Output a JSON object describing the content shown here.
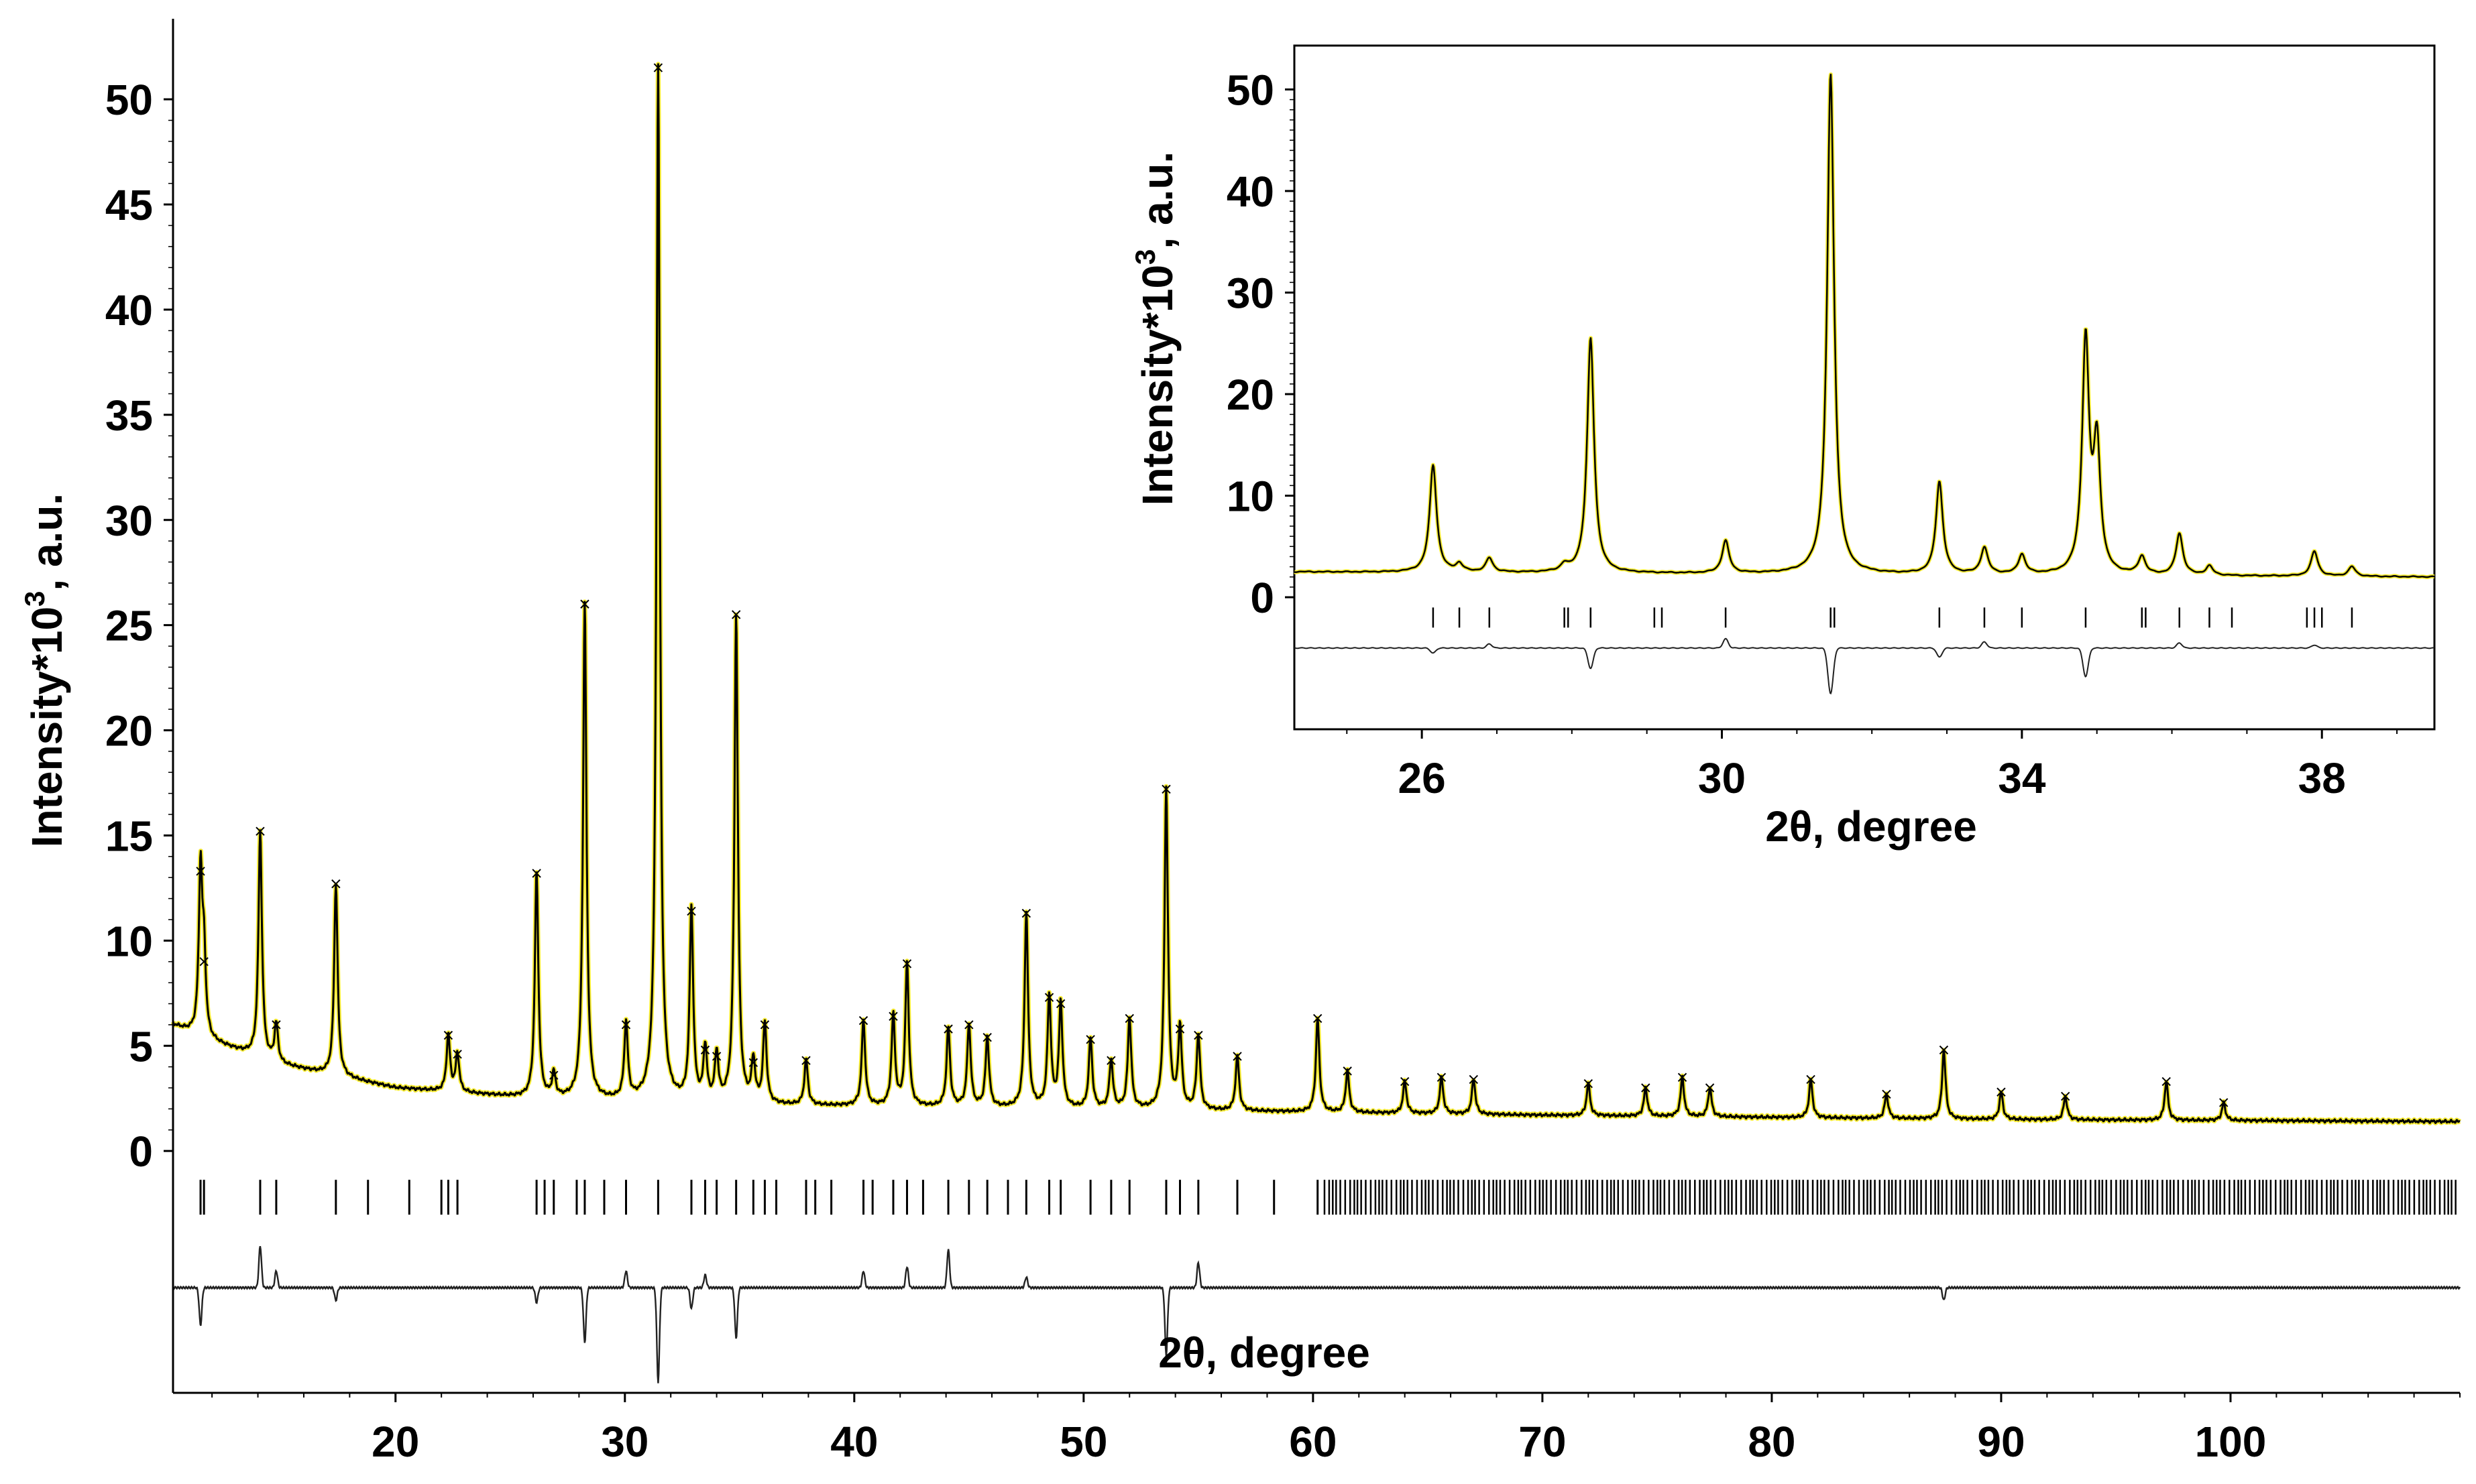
{
  "chart_data": [
    {
      "type": "line",
      "title": "",
      "xlabel": "2θ, degree",
      "ylabel": "Intensity*10",
      "ylabel_superscript": "3",
      "ylabel_suffix": ", a.u.",
      "xlim": [
        10.3,
        110
      ],
      "ylim": [
        -11.5,
        53
      ],
      "xticks": [
        20,
        30,
        40,
        50,
        60,
        70,
        80,
        90,
        100
      ],
      "yticks": [
        0,
        5,
        10,
        15,
        20,
        25,
        30,
        35,
        40,
        45,
        50
      ],
      "series": [
        {
          "role": "observed and calculated profile",
          "style": "observed points (x) with calculated line",
          "highlight_color": "#f5ea33",
          "line_color": "#000000",
          "background": [
            [
              10.3,
              6.0
            ],
            [
              12,
              5.2
            ],
            [
              15,
              4.1
            ],
            [
              20,
              3.0
            ],
            [
              26,
              2.5
            ],
            [
              35,
              2.2
            ],
            [
              50,
              2.0
            ],
            [
              70,
              1.7
            ],
            [
              90,
              1.5
            ],
            [
              110,
              1.4
            ]
          ],
          "peaks": [
            {
              "x": 11.5,
              "y": 13.3
            },
            {
              "x": 11.65,
              "y": 9.0
            },
            {
              "x": 14.1,
              "y": 15.2
            },
            {
              "x": 14.8,
              "y": 6.0
            },
            {
              "x": 17.4,
              "y": 12.7
            },
            {
              "x": 22.3,
              "y": 5.5
            },
            {
              "x": 22.7,
              "y": 4.6
            },
            {
              "x": 26.15,
              "y": 13.2
            },
            {
              "x": 26.9,
              "y": 3.6
            },
            {
              "x": 28.25,
              "y": 26.0
            },
            {
              "x": 30.05,
              "y": 6.0
            },
            {
              "x": 31.45,
              "y": 51.5
            },
            {
              "x": 32.9,
              "y": 11.4
            },
            {
              "x": 33.5,
              "y": 4.8
            },
            {
              "x": 34.0,
              "y": 4.5
            },
            {
              "x": 34.85,
              "y": 25.5
            },
            {
              "x": 35.6,
              "y": 4.2
            },
            {
              "x": 36.1,
              "y": 6.0
            },
            {
              "x": 37.9,
              "y": 4.3
            },
            {
              "x": 40.4,
              "y": 6.2
            },
            {
              "x": 41.7,
              "y": 6.4
            },
            {
              "x": 42.3,
              "y": 8.9
            },
            {
              "x": 44.1,
              "y": 5.8
            },
            {
              "x": 45.0,
              "y": 6.0
            },
            {
              "x": 45.8,
              "y": 5.4
            },
            {
              "x": 47.5,
              "y": 11.3
            },
            {
              "x": 48.5,
              "y": 7.3
            },
            {
              "x": 49.0,
              "y": 7.0
            },
            {
              "x": 50.3,
              "y": 5.3
            },
            {
              "x": 51.2,
              "y": 4.3
            },
            {
              "x": 52.0,
              "y": 6.3
            },
            {
              "x": 53.6,
              "y": 17.2
            },
            {
              "x": 54.2,
              "y": 5.8
            },
            {
              "x": 55.0,
              "y": 5.5
            },
            {
              "x": 56.7,
              "y": 4.5
            },
            {
              "x": 60.2,
              "y": 6.3
            },
            {
              "x": 61.5,
              "y": 3.8
            },
            {
              "x": 64.0,
              "y": 3.3
            },
            {
              "x": 65.6,
              "y": 3.5
            },
            {
              "x": 67.0,
              "y": 3.4
            },
            {
              "x": 72.0,
              "y": 3.2
            },
            {
              "x": 74.5,
              "y": 3.0
            },
            {
              "x": 76.1,
              "y": 3.5
            },
            {
              "x": 77.3,
              "y": 3.0
            },
            {
              "x": 81.7,
              "y": 3.4
            },
            {
              "x": 85.0,
              "y": 2.7
            },
            {
              "x": 87.5,
              "y": 4.8
            },
            {
              "x": 90.0,
              "y": 2.8
            },
            {
              "x": 92.8,
              "y": 2.6
            },
            {
              "x": 97.2,
              "y": 3.3
            },
            {
              "x": 99.7,
              "y": 2.3
            }
          ]
        },
        {
          "role": "Bragg reflection positions",
          "style": "vertical tick marks",
          "y": -2.2,
          "x": [
            11.5,
            11.65,
            14.1,
            14.8,
            17.4,
            18.8,
            20.6,
            22.0,
            22.3,
            22.7,
            26.15,
            26.5,
            26.9,
            27.9,
            28.25,
            29.1,
            30.05,
            31.45,
            32.9,
            33.5,
            34.0,
            34.85,
            35.6,
            36.1,
            36.6,
            37.9,
            38.3,
            39.0,
            40.4,
            40.8,
            41.7,
            42.3,
            43.0,
            44.1,
            45.0,
            45.8,
            46.7,
            47.5,
            48.5,
            49.0,
            50.3,
            51.2,
            52.0,
            53.6,
            54.2,
            55.0,
            56.7,
            58.3,
            60.2
          ]
        },
        {
          "role": "difference curve",
          "style": "line",
          "offset": -6.5,
          "points": [
            {
              "x": 11.5,
              "d": -1.8
            },
            {
              "x": 14.1,
              "d": 2.0
            },
            {
              "x": 14.8,
              "d": 0.8
            },
            {
              "x": 17.4,
              "d": -0.6
            },
            {
              "x": 26.15,
              "d": -0.7
            },
            {
              "x": 28.25,
              "d": -2.6
            },
            {
              "x": 30.05,
              "d": 0.8
            },
            {
              "x": 31.45,
              "d": -4.5
            },
            {
              "x": 32.9,
              "d": -1.0
            },
            {
              "x": 33.5,
              "d": 0.6
            },
            {
              "x": 34.85,
              "d": -2.4
            },
            {
              "x": 40.4,
              "d": 0.8
            },
            {
              "x": 42.3,
              "d": 1.0
            },
            {
              "x": 44.1,
              "d": 1.8
            },
            {
              "x": 47.5,
              "d": 0.5
            },
            {
              "x": 53.6,
              "d": -3.2
            },
            {
              "x": 55.0,
              "d": 1.2
            },
            {
              "x": 87.5,
              "d": -0.6
            }
          ]
        }
      ],
      "grid": false,
      "legend": "none"
    },
    {
      "type": "line",
      "inset": true,
      "title": "",
      "xlabel": "2θ, degree",
      "ylabel": "Intensity*10",
      "ylabel_superscript": "3",
      "ylabel_suffix": ", a.u.",
      "xlim": [
        24.3,
        39.5
      ],
      "ylim": [
        -13,
        53
      ],
      "xticks": [
        26,
        30,
        34,
        38
      ],
      "yticks": [
        0,
        10,
        20,
        30,
        40,
        50
      ],
      "series": [
        {
          "role": "observed and calculated profile",
          "style": "line",
          "highlight_color": "#f5ea33",
          "line_color": "#000000",
          "background": [
            [
              24.3,
              2.5
            ],
            [
              39.5,
              2.0
            ]
          ],
          "peaks": [
            {
              "x": 26.15,
              "y": 13.0
            },
            {
              "x": 26.5,
              "y": 3.2
            },
            {
              "x": 26.9,
              "y": 3.8
            },
            {
              "x": 27.9,
              "y": 3.0
            },
            {
              "x": 28.25,
              "y": 25.5
            },
            {
              "x": 30.05,
              "y": 5.5
            },
            {
              "x": 31.45,
              "y": 51.5
            },
            {
              "x": 32.9,
              "y": 11.3
            },
            {
              "x": 33.5,
              "y": 4.8
            },
            {
              "x": 34.0,
              "y": 4.1
            },
            {
              "x": 34.85,
              "y": 25.0
            },
            {
              "x": 35.0,
              "y": 14.5
            },
            {
              "x": 35.6,
              "y": 3.9
            },
            {
              "x": 36.1,
              "y": 6.2
            },
            {
              "x": 36.5,
              "y": 3.0
            },
            {
              "x": 37.9,
              "y": 4.5
            },
            {
              "x": 38.4,
              "y": 3.0
            }
          ]
        },
        {
          "role": "Bragg reflection positions",
          "style": "vertical tick marks",
          "y": -2.0,
          "x": [
            26.15,
            26.5,
            26.9,
            27.9,
            27.95,
            28.25,
            29.1,
            29.2,
            30.05,
            31.45,
            31.5,
            32.9,
            33.5,
            34.0,
            34.85,
            35.6,
            35.65,
            36.1,
            36.5,
            36.8,
            37.8,
            37.9,
            38.0,
            38.4
          ]
        },
        {
          "role": "difference curve",
          "style": "line",
          "offset": -5.0,
          "points": [
            {
              "x": 26.15,
              "d": -0.5
            },
            {
              "x": 26.9,
              "d": 0.4
            },
            {
              "x": 28.25,
              "d": -2.0
            },
            {
              "x": 30.05,
              "d": 0.9
            },
            {
              "x": 31.45,
              "d": -4.5
            },
            {
              "x": 32.9,
              "d": -0.9
            },
            {
              "x": 33.5,
              "d": 0.6
            },
            {
              "x": 34.85,
              "d": -2.8
            },
            {
              "x": 36.1,
              "d": 0.5
            },
            {
              "x": 37.9,
              "d": 0.3
            }
          ]
        }
      ],
      "grid": false,
      "legend": "none"
    }
  ]
}
